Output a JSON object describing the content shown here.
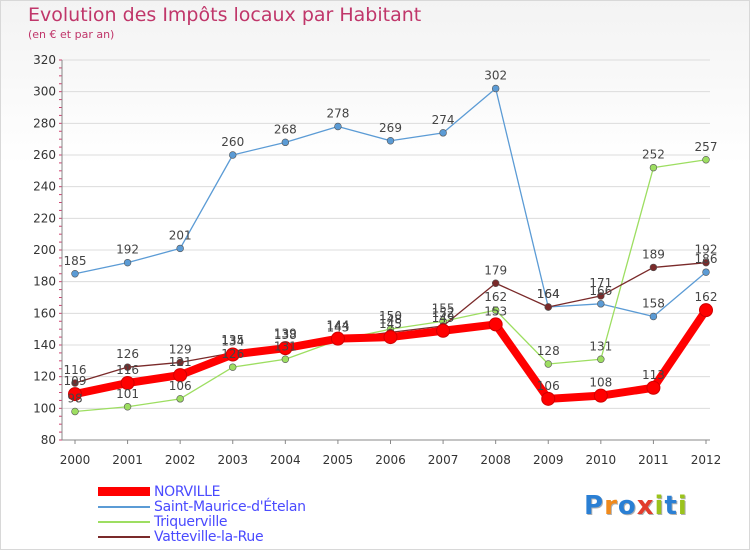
{
  "title": "Evolution des Impôts locaux par Habitant",
  "subtitle": "(en € et par an)",
  "logo": {
    "text": "Proxiti",
    "colors": [
      "#2a7fd4",
      "#f08a1c",
      "#2a7fd4",
      "#e23c2c",
      "#9bc31c",
      "#2a7fd4",
      "#9bc31c"
    ]
  },
  "chart_data": {
    "type": "line",
    "x": [
      2000,
      2001,
      2002,
      2003,
      2004,
      2005,
      2006,
      2007,
      2008,
      2009,
      2010,
      2011,
      2012
    ],
    "ylim": [
      80,
      320
    ],
    "yticks": [
      80,
      100,
      120,
      140,
      160,
      180,
      200,
      220,
      240,
      260,
      280,
      300,
      320
    ],
    "grid": "horizontal",
    "legend_position": "bottom-left",
    "series": [
      {
        "name": "Saint-Maurice-d'Ételan",
        "color": "#5b9bd5",
        "values": [
          185,
          192,
          201,
          260,
          268,
          278,
          269,
          274,
          302,
          164,
          166,
          158,
          186
        ]
      },
      {
        "name": "Triquerville",
        "color": "#9dde61",
        "values": [
          98,
          101,
          106,
          126,
          131,
          143,
          150,
          155,
          162,
          128,
          131,
          252,
          257
        ]
      },
      {
        "name": "Vatteville-la-Rue",
        "color": "#7a2a2a",
        "values": [
          116,
          126,
          129,
          135,
          139,
          144,
          148,
          152,
          179,
          164,
          171,
          189,
          192
        ]
      },
      {
        "name": "NORVILLE",
        "color": "#ff0000",
        "values": [
          109,
          116,
          121,
          134,
          138,
          144,
          145,
          149,
          153,
          106,
          108,
          113,
          162
        ]
      }
    ]
  }
}
